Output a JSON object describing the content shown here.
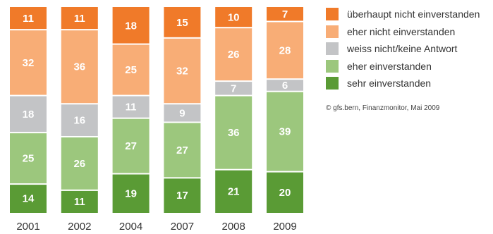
{
  "chart_data": {
    "type": "bar",
    "stacked": true,
    "percent": true,
    "categories": [
      "2001",
      "2002",
      "2004",
      "2007",
      "2008",
      "2009"
    ],
    "series": [
      {
        "name": "sehr einverstanden",
        "color": "#5a9b35",
        "values": [
          14,
          11,
          19,
          17,
          21,
          20
        ]
      },
      {
        "name": "eher einverstanden",
        "color": "#9cc77d",
        "values": [
          25,
          26,
          27,
          27,
          36,
          39
        ]
      },
      {
        "name": "weiss nicht/keine Antwort",
        "color": "#c3c4c6",
        "values": [
          18,
          16,
          11,
          9,
          7,
          6
        ]
      },
      {
        "name": "eher nicht einverstanden",
        "color": "#f8ad76",
        "values": [
          32,
          36,
          25,
          32,
          26,
          28
        ]
      },
      {
        "name": "überhaupt nicht einverstanden",
        "color": "#f07a29",
        "values": [
          11,
          11,
          18,
          15,
          10,
          7
        ]
      }
    ],
    "legend_position": "right",
    "grid": false
  },
  "legend": {
    "items": [
      {
        "label": "überhaupt nicht einverstanden",
        "color": "#f07a29"
      },
      {
        "label": "eher nicht einverstanden",
        "color": "#f8ad76"
      },
      {
        "label": "weiss nicht/keine Antwort",
        "color": "#c3c4c6"
      },
      {
        "label": "eher einverstanden",
        "color": "#9cc77d"
      },
      {
        "label": "sehr einverstanden",
        "color": "#5a9b35"
      }
    ]
  },
  "source": "© gfs.bern, Finanzmonitor, Mai 2009"
}
